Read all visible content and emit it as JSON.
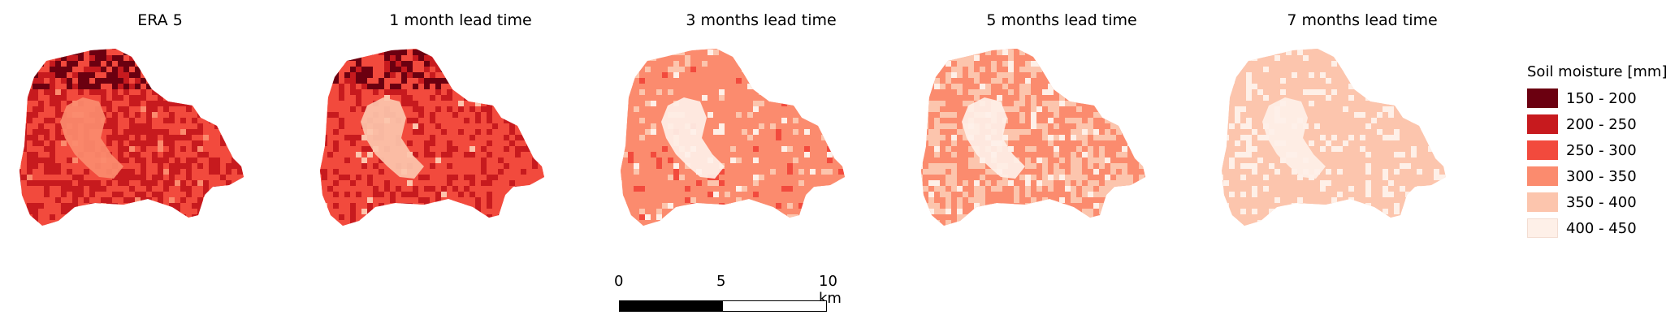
{
  "panels": [
    {
      "title": "ERA 5",
      "pattern": [
        2,
        2,
        1,
        1,
        1,
        2,
        2,
        1,
        1,
        2,
        3,
        1,
        4,
        1,
        1,
        2,
        1,
        1,
        2,
        2,
        1,
        2,
        1,
        1
      ]
    },
    {
      "title": "1 month lead time",
      "pattern": [
        2,
        2,
        1,
        2,
        1,
        2,
        2,
        2,
        1,
        2,
        4,
        1,
        4,
        2,
        1,
        2,
        1,
        2,
        2,
        2,
        1,
        2,
        2,
        1
      ]
    },
    {
      "title": "3 months lead time",
      "pattern": [
        3,
        3,
        3,
        2,
        3,
        3,
        3,
        3,
        3,
        3,
        5,
        3,
        5,
        3,
        3,
        3,
        4,
        3,
        3,
        3,
        3,
        3,
        4,
        3
      ]
    },
    {
      "title": "5 months lead time",
      "pattern": [
        3,
        4,
        3,
        3,
        4,
        3,
        4,
        4,
        3,
        4,
        6,
        3,
        6,
        4,
        3,
        4,
        4,
        3,
        4,
        3,
        4,
        4,
        5,
        3
      ]
    },
    {
      "title": "7 months lead time",
      "pattern": [
        4,
        4,
        4,
        4,
        4,
        5,
        4,
        4,
        4,
        4,
        6,
        4,
        6,
        4,
        4,
        5,
        4,
        4,
        4,
        5,
        4,
        4,
        5,
        4
      ]
    }
  ],
  "legend": {
    "title": "Soil moisture [mm]",
    "items": [
      {
        "label": "150 - 200",
        "color": "#6b0010"
      },
      {
        "label": "200 - 250",
        "color": "#c71a1e"
      },
      {
        "label": "250 - 300",
        "color": "#f24a3d"
      },
      {
        "label": "300 - 350",
        "color": "#fb8b6e"
      },
      {
        "label": "350 - 400",
        "color": "#fcc5ad"
      },
      {
        "label": "400 - 450",
        "color": "#fef0e8"
      }
    ]
  },
  "scalebar": {
    "ticks": [
      "0",
      "5",
      "10 km"
    ]
  }
}
